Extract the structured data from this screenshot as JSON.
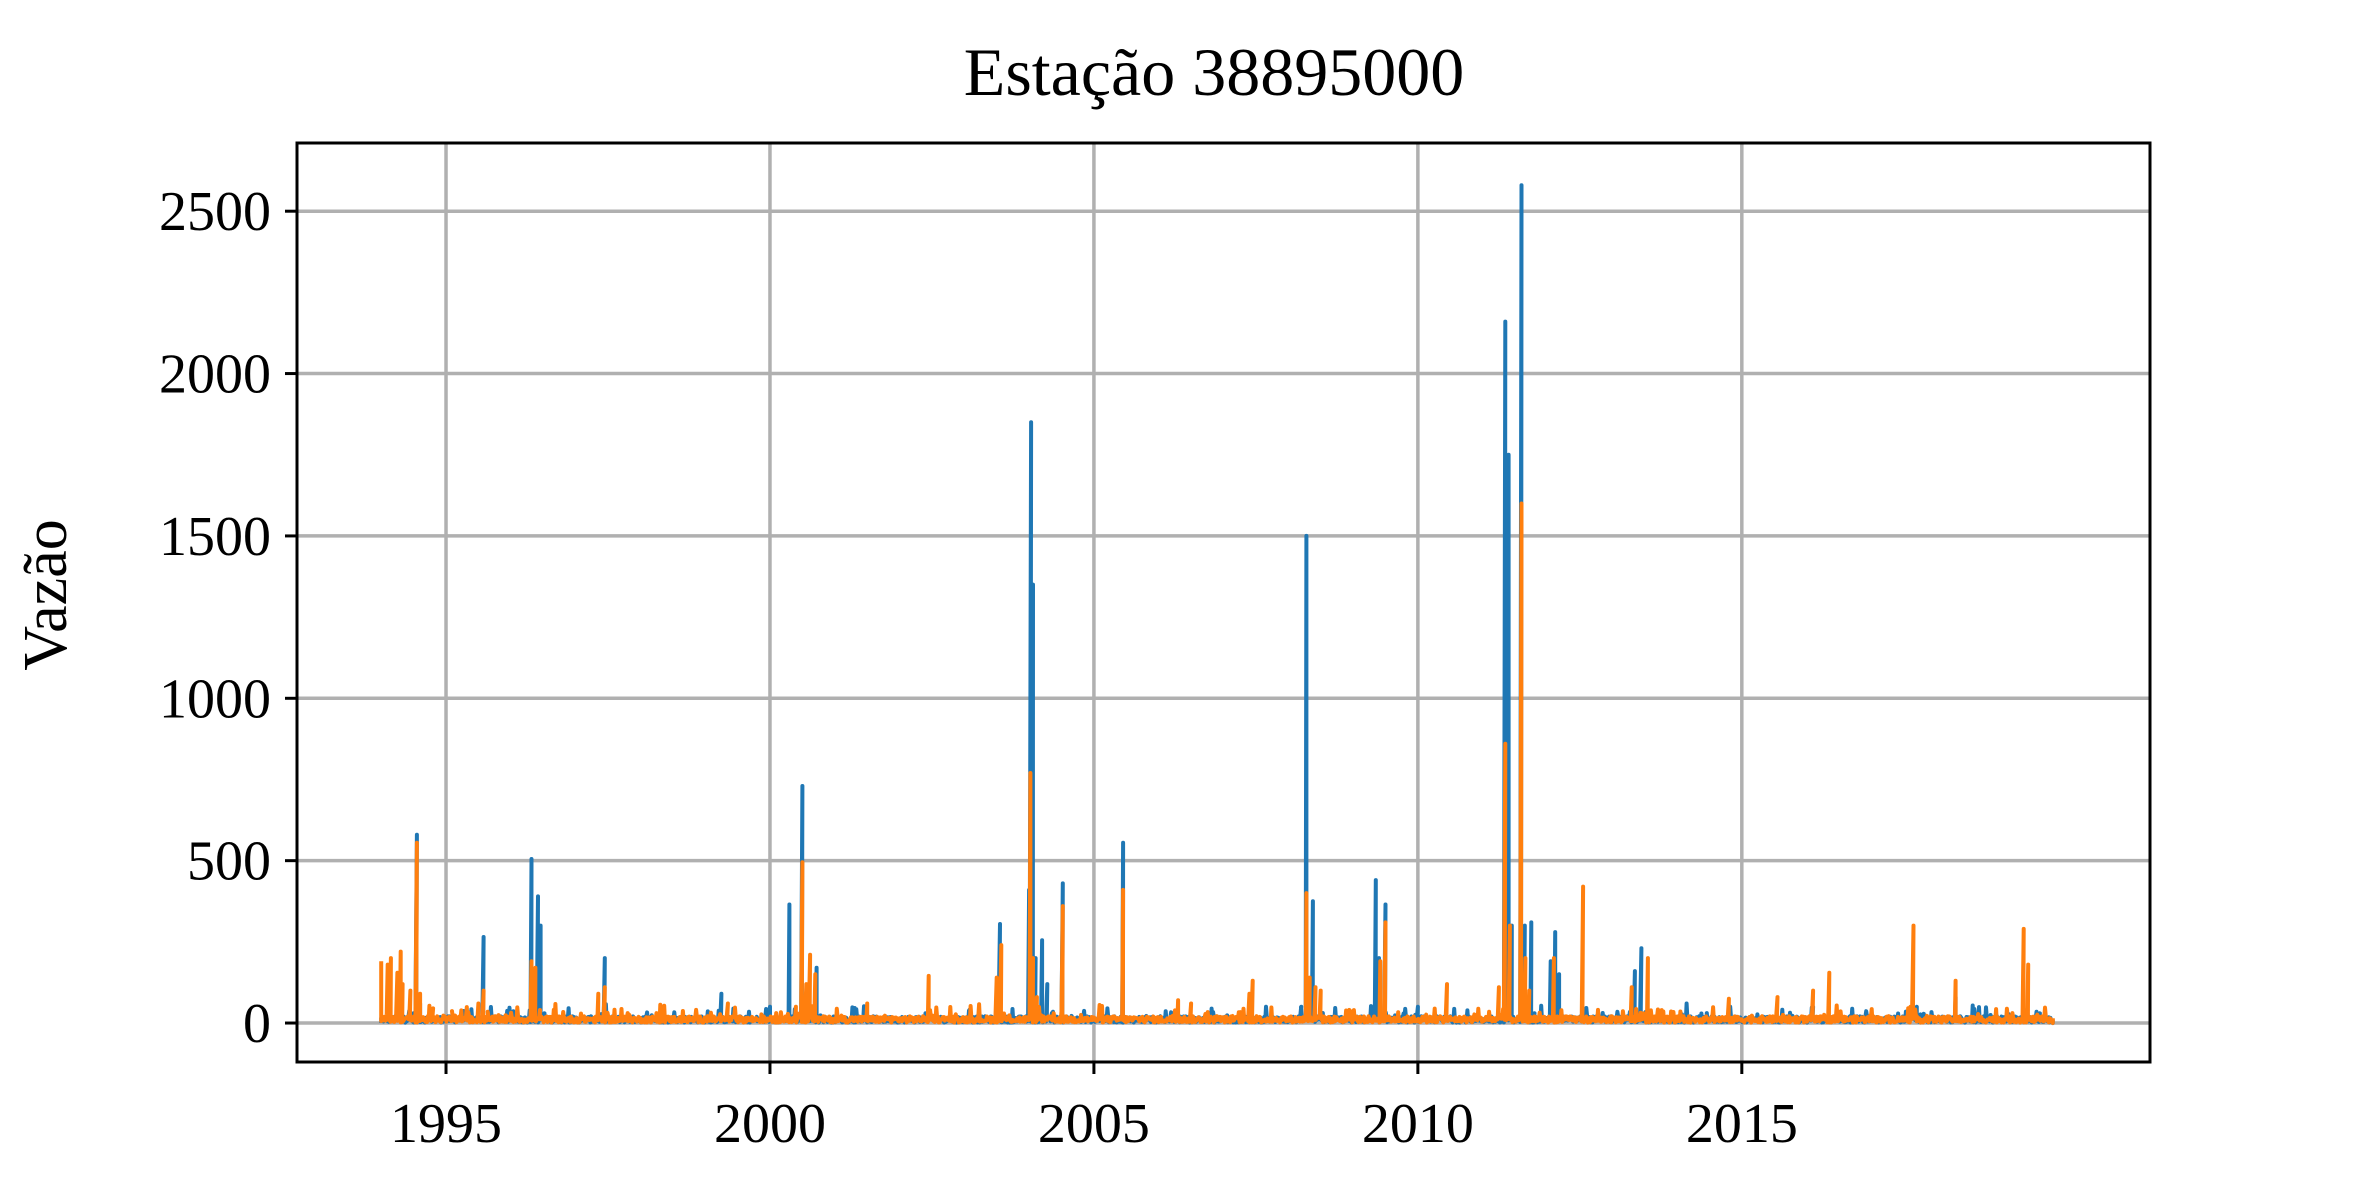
{
  "chart_data": {
    "type": "line",
    "title": "Estação 38895000",
    "xlabel": "",
    "ylabel": "Vazão",
    "xlim": [
      1992.7,
      2021.3
    ],
    "ylim": [
      -120,
      2710
    ],
    "grid": true,
    "x_ticks": [
      1995,
      2000,
      2005,
      2010,
      2015
    ],
    "x_tick_labels": [
      "1995",
      "2000",
      "2005",
      "2010",
      "2015"
    ],
    "y_ticks": [
      0,
      500,
      1000,
      1500,
      2000,
      2500
    ],
    "y_tick_labels": [
      "0",
      "500",
      "1000",
      "1500",
      "2000",
      "2500"
    ],
    "colors": [
      "#1f77b4",
      "#ff7f0e"
    ],
    "baseline": 8,
    "series": [
      {
        "color": "#1f77b4",
        "range": [
          1994.0,
          2019.8
        ],
        "points": [
          [
            1994.0,
            0
          ],
          [
            1994.3,
            10
          ],
          [
            1994.32,
            60
          ],
          [
            1994.35,
            5
          ],
          [
            1994.5,
            30
          ],
          [
            1994.55,
            580
          ],
          [
            1994.6,
            60
          ],
          [
            1994.7,
            10
          ],
          [
            1995.5,
            20
          ],
          [
            1995.58,
            265
          ],
          [
            1995.63,
            15
          ],
          [
            1996.2,
            15
          ],
          [
            1996.32,
            505
          ],
          [
            1996.36,
            100
          ],
          [
            1996.42,
            390
          ],
          [
            1996.46,
            300
          ],
          [
            1996.52,
            30
          ],
          [
            1997.45,
            200
          ],
          [
            1997.5,
            15
          ],
          [
            1999.25,
            90
          ],
          [
            1999.3,
            10
          ],
          [
            2000.0,
            50
          ],
          [
            2000.05,
            10
          ],
          [
            2000.3,
            365
          ],
          [
            2000.34,
            20
          ],
          [
            2000.5,
            730
          ],
          [
            2000.56,
            80
          ],
          [
            2000.72,
            170
          ],
          [
            2000.78,
            10
          ],
          [
            2002.4,
            30
          ],
          [
            2003.55,
            305
          ],
          [
            2003.6,
            20
          ],
          [
            2004.0,
            410
          ],
          [
            2004.03,
            1850
          ],
          [
            2004.06,
            1350
          ],
          [
            2004.1,
            200
          ],
          [
            2004.2,
            255
          ],
          [
            2004.28,
            120
          ],
          [
            2004.35,
            30
          ],
          [
            2004.52,
            430
          ],
          [
            2004.58,
            20
          ],
          [
            2005.45,
            555
          ],
          [
            2005.5,
            15
          ],
          [
            2008.2,
            50
          ],
          [
            2008.28,
            1500
          ],
          [
            2008.32,
            60
          ],
          [
            2008.38,
            375
          ],
          [
            2008.45,
            20
          ],
          [
            2009.35,
            440
          ],
          [
            2009.4,
            200
          ],
          [
            2009.5,
            365
          ],
          [
            2009.55,
            20
          ],
          [
            2010.0,
            50
          ],
          [
            2010.05,
            10
          ],
          [
            2011.35,
            2160
          ],
          [
            2011.4,
            1750
          ],
          [
            2011.45,
            300
          ],
          [
            2011.6,
            2580
          ],
          [
            2011.65,
            300
          ],
          [
            2011.75,
            310
          ],
          [
            2011.8,
            30
          ],
          [
            2012.05,
            190
          ],
          [
            2012.12,
            280
          ],
          [
            2012.18,
            150
          ],
          [
            2012.25,
            20
          ],
          [
            2013.35,
            160
          ],
          [
            2013.45,
            230
          ],
          [
            2013.5,
            20
          ],
          [
            2016.1,
            50
          ],
          [
            2017.7,
            50
          ],
          [
            2018.3,
            80
          ],
          [
            2019.6,
            30
          ],
          [
            2019.8,
            0
          ]
        ]
      },
      {
        "color": "#ff7f0e",
        "range": [
          1994.0,
          2019.8
        ],
        "points": [
          [
            1994.0,
            190
          ],
          [
            1994.1,
            180
          ],
          [
            1994.15,
            200
          ],
          [
            1994.25,
            155
          ],
          [
            1994.3,
            220
          ],
          [
            1994.33,
            120
          ],
          [
            1994.45,
            100
          ],
          [
            1994.55,
            555
          ],
          [
            1994.6,
            90
          ],
          [
            1994.8,
            45
          ],
          [
            1995.1,
            25
          ],
          [
            1995.5,
            60
          ],
          [
            1995.58,
            100
          ],
          [
            1995.65,
            15
          ],
          [
            1996.32,
            190
          ],
          [
            1996.38,
            170
          ],
          [
            1996.45,
            40
          ],
          [
            1997.35,
            90
          ],
          [
            1997.45,
            110
          ],
          [
            1997.52,
            15
          ],
          [
            1999.35,
            60
          ],
          [
            1999.4,
            10
          ],
          [
            2000.4,
            50
          ],
          [
            2000.5,
            495
          ],
          [
            2000.56,
            120
          ],
          [
            2000.62,
            210
          ],
          [
            2000.7,
            150
          ],
          [
            2000.76,
            15
          ],
          [
            2001.5,
            60
          ],
          [
            2001.55,
            10
          ],
          [
            2002.45,
            145
          ],
          [
            2002.5,
            10
          ],
          [
            2003.5,
            140
          ],
          [
            2003.57,
            240
          ],
          [
            2003.62,
            15
          ],
          [
            2004.02,
            770
          ],
          [
            2004.06,
            200
          ],
          [
            2004.12,
            80
          ],
          [
            2004.52,
            360
          ],
          [
            2004.56,
            20
          ],
          [
            2005.45,
            410
          ],
          [
            2005.5,
            15
          ],
          [
            2006.3,
            70
          ],
          [
            2006.5,
            60
          ],
          [
            2007.4,
            90
          ],
          [
            2007.45,
            130
          ],
          [
            2007.5,
            10
          ],
          [
            2008.28,
            400
          ],
          [
            2008.33,
            140
          ],
          [
            2008.42,
            110
          ],
          [
            2008.5,
            100
          ],
          [
            2008.55,
            20
          ],
          [
            2009.42,
            190
          ],
          [
            2009.5,
            310
          ],
          [
            2009.55,
            20
          ],
          [
            2010.45,
            120
          ],
          [
            2010.5,
            10
          ],
          [
            2011.25,
            110
          ],
          [
            2011.35,
            860
          ],
          [
            2011.42,
            300
          ],
          [
            2011.6,
            1600
          ],
          [
            2011.66,
            200
          ],
          [
            2011.72,
            100
          ],
          [
            2011.8,
            20
          ],
          [
            2012.1,
            200
          ],
          [
            2012.15,
            20
          ],
          [
            2012.55,
            420
          ],
          [
            2012.6,
            20
          ],
          [
            2013.3,
            110
          ],
          [
            2013.55,
            200
          ],
          [
            2013.62,
            10
          ],
          [
            2014.8,
            75
          ],
          [
            2014.85,
            5
          ],
          [
            2015.55,
            80
          ],
          [
            2015.6,
            5
          ],
          [
            2016.1,
            100
          ],
          [
            2016.15,
            5
          ],
          [
            2016.35,
            155
          ],
          [
            2016.4,
            5
          ],
          [
            2017.65,
            300
          ],
          [
            2017.7,
            5
          ],
          [
            2018.3,
            130
          ],
          [
            2018.35,
            5
          ],
          [
            2019.35,
            290
          ],
          [
            2019.42,
            180
          ],
          [
            2019.48,
            10
          ],
          [
            2019.8,
            0
          ]
        ]
      }
    ]
  }
}
